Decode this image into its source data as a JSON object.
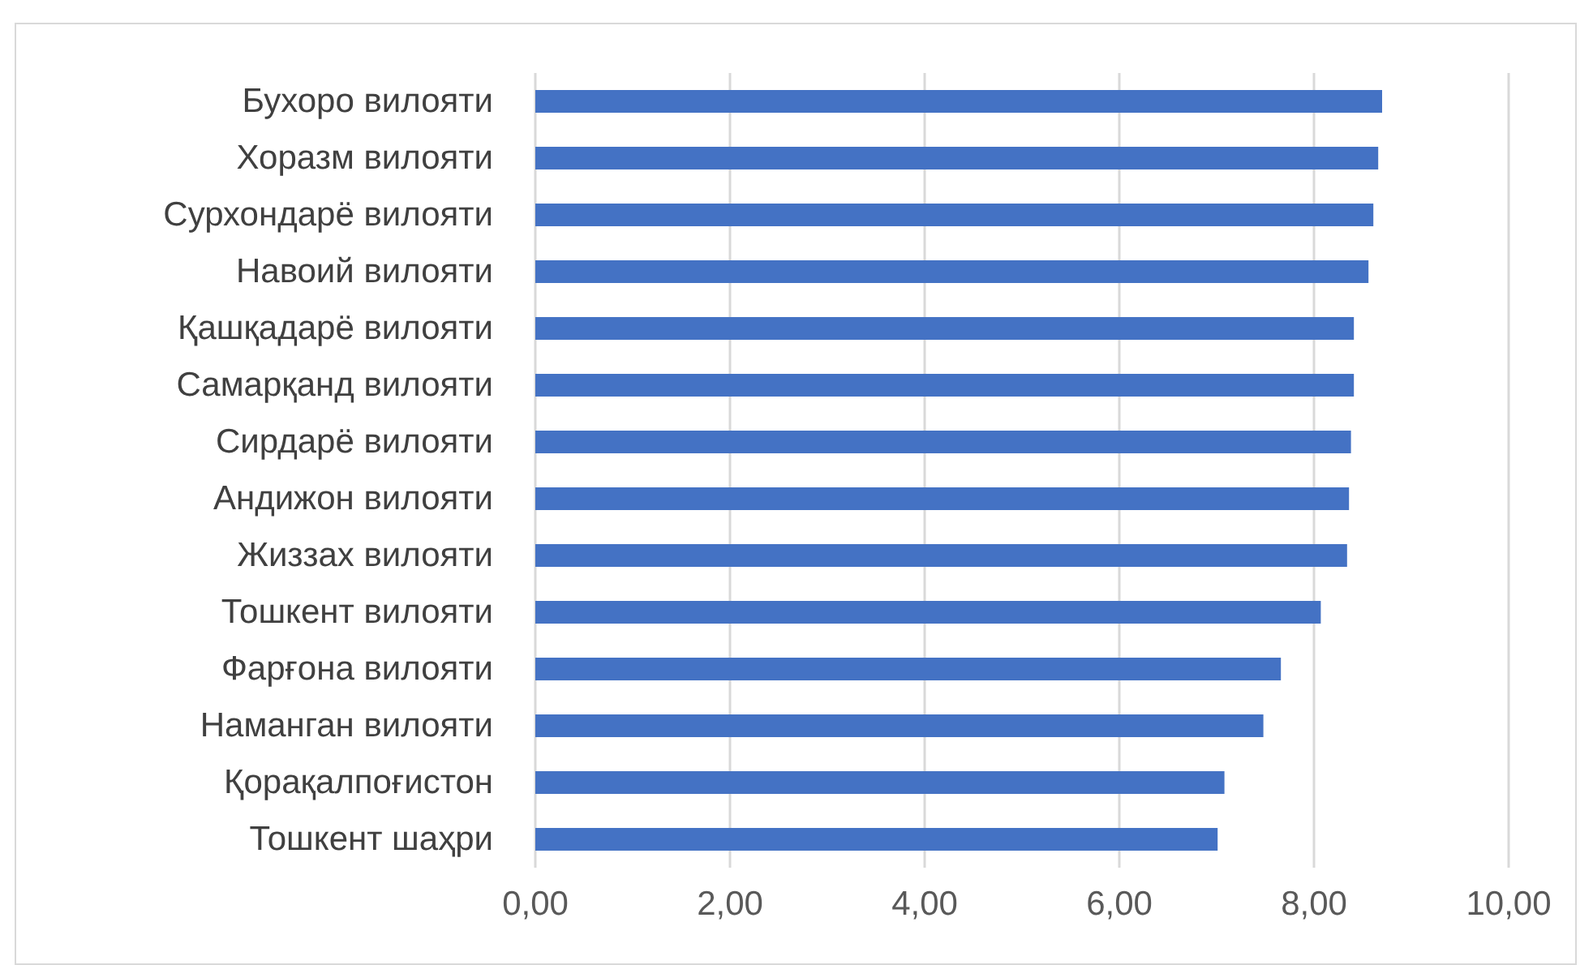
{
  "chart_data": {
    "type": "bar",
    "orientation": "horizontal",
    "categories": [
      "Бухоро вилояти",
      "Хоразм вилояти",
      "Сурхондарё вилояти",
      "Навоий вилояти",
      "Қашқадарё вилояти",
      "Самарқанд вилояти",
      "Сирдарё вилояти",
      "Андижон вилояти",
      "Жиззах вилояти",
      "Тошкент вилояти",
      "Фарғона вилояти",
      "Наманган вилояти",
      "Қорақалпоғистон",
      "Тошкент шаҳри"
    ],
    "values": [
      8.7,
      8.66,
      8.61,
      8.56,
      8.41,
      8.41,
      8.38,
      8.36,
      8.34,
      8.07,
      7.66,
      7.48,
      7.08,
      7.01
    ],
    "color": "#4472c4",
    "xlim": [
      0,
      10
    ],
    "xticks": [
      {
        "value": 0,
        "label": "0,00"
      },
      {
        "value": 2,
        "label": "2,00"
      },
      {
        "value": 4,
        "label": "4,00"
      },
      {
        "value": 6,
        "label": "6,00"
      },
      {
        "value": 8,
        "label": "8,00"
      },
      {
        "value": 10,
        "label": "10,00"
      }
    ],
    "grid": "x"
  }
}
